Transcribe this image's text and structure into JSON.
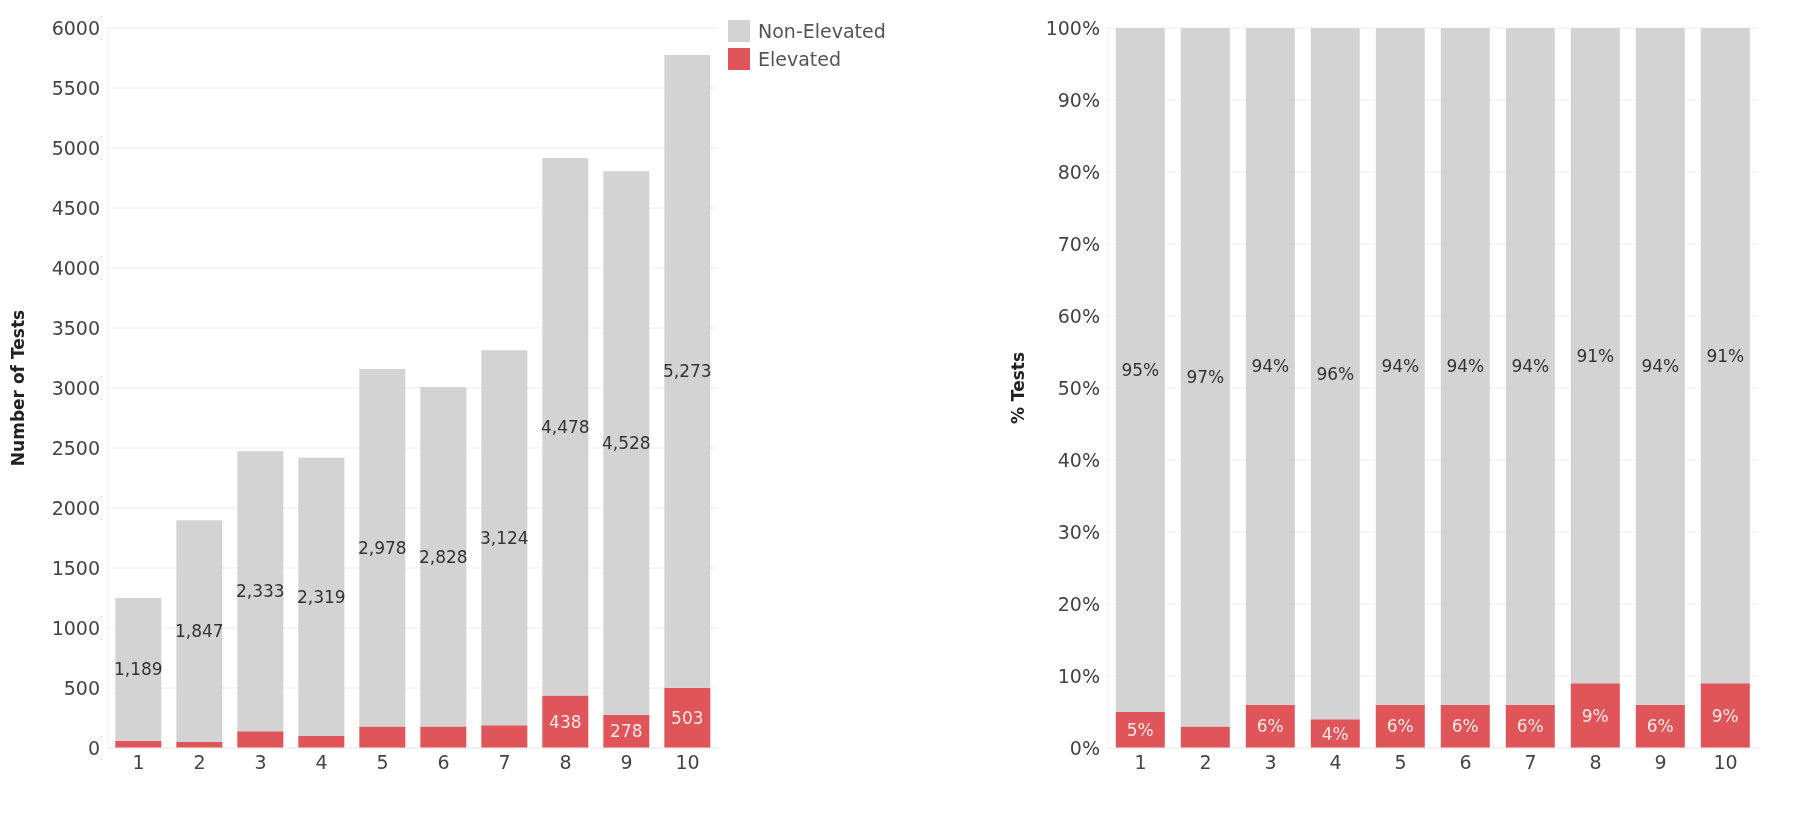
{
  "chart_data": [
    {
      "type": "bar",
      "stacked": true,
      "ylabel": "Number of Tests",
      "categories": [
        "1",
        "2",
        "3",
        "4",
        "5",
        "6",
        "7",
        "8",
        "9",
        "10"
      ],
      "series": [
        {
          "name": "Elevated",
          "color": "#e05559",
          "values": [
            60,
            50,
            140,
            100,
            180,
            180,
            190,
            438,
            278,
            503
          ],
          "value_labels": [
            null,
            null,
            null,
            null,
            null,
            null,
            null,
            "438",
            "278",
            "503"
          ]
        },
        {
          "name": "Non-Elevated",
          "color": "#d3d3d3",
          "values": [
            1189,
            1847,
            2333,
            2319,
            2978,
            2828,
            3124,
            4478,
            4528,
            5273
          ],
          "value_labels": [
            "1,189",
            "1,847",
            "2,333",
            "2,319",
            "2,978",
            "2,828",
            "3,124",
            "4,478",
            "4,528",
            "5,273"
          ]
        }
      ],
      "ylim": [
        0,
        6000
      ],
      "yticks": [
        0,
        500,
        1000,
        1500,
        2000,
        2500,
        3000,
        3500,
        4000,
        4500,
        5000,
        5500,
        6000
      ],
      "grid": "y",
      "legend": "right"
    },
    {
      "type": "bar",
      "stacked": true,
      "ylabel": "% Tests",
      "categories": [
        "1",
        "2",
        "3",
        "4",
        "5",
        "6",
        "7",
        "8",
        "9",
        "10"
      ],
      "series": [
        {
          "color": "#e05559",
          "values": [
            5,
            3,
            6,
            4,
            6,
            6,
            6,
            9,
            6,
            9
          ],
          "value_labels": [
            "5%",
            null,
            "6%",
            "4%",
            "6%",
            "6%",
            "6%",
            "9%",
            "6%",
            "9%"
          ]
        },
        {
          "color": "#d3d3d3",
          "values": [
            95,
            97,
            94,
            96,
            94,
            94,
            94,
            91,
            94,
            91
          ],
          "value_labels": [
            "95%",
            "97%",
            "94%",
            "96%",
            "94%",
            "94%",
            "94%",
            "91%",
            "94%",
            "91%"
          ]
        }
      ],
      "ylim": [
        0,
        100
      ],
      "yticks": [
        {
          "value": 0,
          "label": "0%"
        },
        {
          "value": 10,
          "label": "10%"
        },
        {
          "value": 20,
          "label": "20%"
        },
        {
          "value": 30,
          "label": "30%"
        },
        {
          "value": 40,
          "label": "40%"
        },
        {
          "value": 50,
          "label": "50%"
        },
        {
          "value": 60,
          "label": "60%"
        },
        {
          "value": 70,
          "label": "70%"
        },
        {
          "value": 80,
          "label": "80%"
        },
        {
          "value": 90,
          "label": "90%"
        },
        {
          "value": 100,
          "label": "100%"
        }
      ],
      "grid": "y"
    }
  ]
}
